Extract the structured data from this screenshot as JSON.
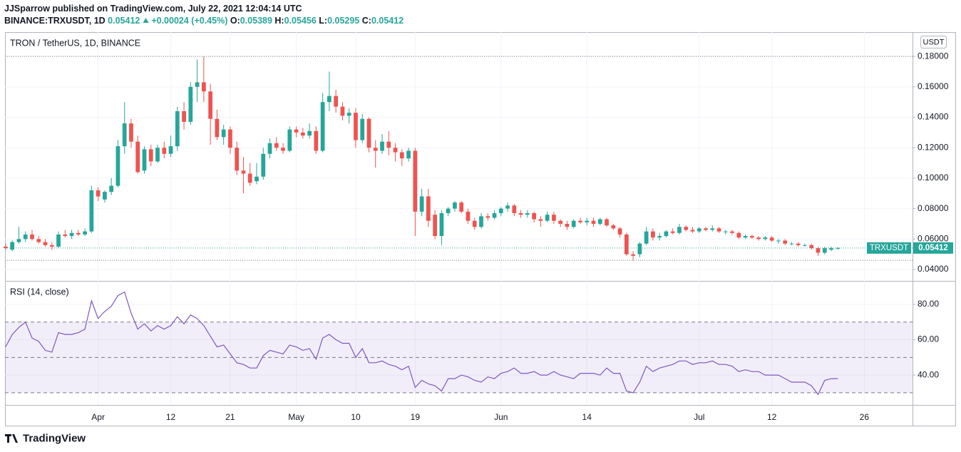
{
  "header": {
    "author_line": "JJSparrow published on TradingView.com, July 22, 2021 12:04:14 UTC",
    "symbol": "BINANCE:TRXUSDT, 1D",
    "last": "0.05412",
    "change": "+0.00024 (+0.45%)",
    "ohlc": [
      [
        "O:",
        "0.05389"
      ],
      [
        "H:",
        "0.05456"
      ],
      [
        "L:",
        "0.05295"
      ],
      [
        "C:",
        "0.05412"
      ]
    ]
  },
  "chart_data": [
    {
      "type": "candlestick",
      "title": "TRON / TetherUS, 1D, BINANCE",
      "currency": "USDT",
      "name": "TRXUSDT",
      "last_label": "0.05412",
      "up_color": "#26a69a",
      "down_color": "#ef5350",
      "grid": true,
      "xlim": [
        -0.1,
        137.3
      ],
      "xticks": [
        {
          "value": 14,
          "label": "Apr"
        },
        {
          "value": 25,
          "label": "12"
        },
        {
          "value": 34,
          "label": "21"
        },
        {
          "value": 44,
          "label": "May"
        },
        {
          "value": 53,
          "label": "10"
        },
        {
          "value": 62,
          "label": "19"
        },
        {
          "value": 75,
          "label": "Jun"
        },
        {
          "value": 88,
          "label": "14"
        },
        {
          "value": 105,
          "label": "Jul"
        },
        {
          "value": 116,
          "label": "12"
        },
        {
          "value": 130,
          "label": "26"
        }
      ],
      "ylim": [
        0.0325,
        0.196
      ],
      "yticks": [
        {
          "value": 0.18,
          "label": "0.18000"
        },
        {
          "value": 0.16,
          "label": "0.16000"
        },
        {
          "value": 0.14,
          "label": "0.14000"
        },
        {
          "value": 0.12,
          "label": "0.12000"
        },
        {
          "value": 0.1,
          "label": "0.10000"
        },
        {
          "value": 0.08,
          "label": "0.08000"
        },
        {
          "value": 0.06,
          "label": "0.06000"
        },
        {
          "value": 0.04,
          "label": "0.04000"
        }
      ],
      "candles": [
        [
          0.055,
          0.057,
          0.053,
          0.054
        ],
        [
          0.053,
          0.059,
          0.052,
          0.058
        ],
        [
          0.058,
          0.068,
          0.057,
          0.06
        ],
        [
          0.06,
          0.065,
          0.058,
          0.063
        ],
        [
          0.063,
          0.066,
          0.059,
          0.06
        ],
        [
          0.06,
          0.062,
          0.057,
          0.058
        ],
        [
          0.058,
          0.06,
          0.055,
          0.056
        ],
        [
          0.056,
          0.058,
          0.053,
          0.055
        ],
        [
          0.055,
          0.065,
          0.054,
          0.063
        ],
        [
          0.063,
          0.066,
          0.061,
          0.062
        ],
        [
          0.062,
          0.066,
          0.06,
          0.064
        ],
        [
          0.064,
          0.066,
          0.062,
          0.063
        ],
        [
          0.063,
          0.067,
          0.062,
          0.065
        ],
        [
          0.065,
          0.095,
          0.064,
          0.092
        ],
        [
          0.092,
          0.094,
          0.085,
          0.088
        ],
        [
          0.086,
          0.092,
          0.084,
          0.091
        ],
        [
          0.091,
          0.1,
          0.089,
          0.095
        ],
        [
          0.095,
          0.125,
          0.094,
          0.121
        ],
        [
          0.121,
          0.15,
          0.116,
          0.136
        ],
        [
          0.136,
          0.139,
          0.12,
          0.124
        ],
        [
          0.124,
          0.128,
          0.103,
          0.104
        ],
        [
          0.105,
          0.121,
          0.103,
          0.119
        ],
        [
          0.119,
          0.122,
          0.108,
          0.111
        ],
        [
          0.111,
          0.122,
          0.11,
          0.12
        ],
        [
          0.12,
          0.124,
          0.113,
          0.116
        ],
        [
          0.116,
          0.128,
          0.114,
          0.121
        ],
        [
          0.121,
          0.147,
          0.118,
          0.144
        ],
        [
          0.144,
          0.15,
          0.132,
          0.137
        ],
        [
          0.137,
          0.163,
          0.135,
          0.16
        ],
        [
          0.16,
          0.178,
          0.15,
          0.163
        ],
        [
          0.163,
          0.18,
          0.15,
          0.157
        ],
        [
          0.157,
          0.162,
          0.122,
          0.139
        ],
        [
          0.139,
          0.145,
          0.125,
          0.127
        ],
        [
          0.127,
          0.135,
          0.122,
          0.132
        ],
        [
          0.132,
          0.134,
          0.116,
          0.12
        ],
        [
          0.12,
          0.124,
          0.102,
          0.105
        ],
        [
          0.105,
          0.114,
          0.09,
          0.103
        ],
        [
          0.103,
          0.11,
          0.095,
          0.097
        ],
        [
          0.098,
          0.11,
          0.096,
          0.101
        ],
        [
          0.101,
          0.12,
          0.099,
          0.116
        ],
        [
          0.116,
          0.126,
          0.113,
          0.123
        ],
        [
          0.123,
          0.127,
          0.118,
          0.12
        ],
        [
          0.12,
          0.123,
          0.116,
          0.118
        ],
        [
          0.118,
          0.134,
          0.117,
          0.132
        ],
        [
          0.132,
          0.134,
          0.127,
          0.13
        ],
        [
          0.13,
          0.133,
          0.126,
          0.128
        ],
        [
          0.128,
          0.136,
          0.126,
          0.131
        ],
        [
          0.131,
          0.134,
          0.116,
          0.118
        ],
        [
          0.118,
          0.156,
          0.117,
          0.15
        ],
        [
          0.15,
          0.17,
          0.144,
          0.154
        ],
        [
          0.154,
          0.158,
          0.143,
          0.147
        ],
        [
          0.147,
          0.15,
          0.138,
          0.141
        ],
        [
          0.141,
          0.146,
          0.136,
          0.143
        ],
        [
          0.143,
          0.146,
          0.12,
          0.125
        ],
        [
          0.125,
          0.142,
          0.123,
          0.139
        ],
        [
          0.139,
          0.14,
          0.117,
          0.12
        ],
        [
          0.12,
          0.125,
          0.107,
          0.118
        ],
        [
          0.118,
          0.129,
          0.116,
          0.124
        ],
        [
          0.124,
          0.131,
          0.115,
          0.12
        ],
        [
          0.12,
          0.123,
          0.111,
          0.117
        ],
        [
          0.117,
          0.119,
          0.108,
          0.113
        ],
        [
          0.113,
          0.12,
          0.111,
          0.118
        ],
        [
          0.118,
          0.12,
          0.062,
          0.078
        ],
        [
          0.078,
          0.093,
          0.075,
          0.088
        ],
        [
          0.088,
          0.093,
          0.068,
          0.072
        ],
        [
          0.076,
          0.079,
          0.06,
          0.062
        ],
        [
          0.062,
          0.079,
          0.056,
          0.077
        ],
        [
          0.077,
          0.081,
          0.075,
          0.08
        ],
        [
          0.08,
          0.085,
          0.078,
          0.084
        ],
        [
          0.084,
          0.085,
          0.077,
          0.078
        ],
        [
          0.078,
          0.08,
          0.07,
          0.072
        ],
        [
          0.072,
          0.074,
          0.066,
          0.068
        ],
        [
          0.068,
          0.077,
          0.067,
          0.075
        ],
        [
          0.075,
          0.077,
          0.072,
          0.074
        ],
        [
          0.074,
          0.079,
          0.073,
          0.077
        ],
        [
          0.077,
          0.081,
          0.075,
          0.08
        ],
        [
          0.08,
          0.084,
          0.078,
          0.082
        ],
        [
          0.082,
          0.083,
          0.075,
          0.077
        ],
        [
          0.077,
          0.079,
          0.074,
          0.076
        ],
        [
          0.076,
          0.079,
          0.074,
          0.077
        ],
        [
          0.077,
          0.078,
          0.071,
          0.073
        ],
        [
          0.073,
          0.075,
          0.068,
          0.072
        ],
        [
          0.072,
          0.078,
          0.071,
          0.076
        ],
        [
          0.076,
          0.078,
          0.07,
          0.072
        ],
        [
          0.072,
          0.073,
          0.068,
          0.07
        ],
        [
          0.07,
          0.072,
          0.066,
          0.068
        ],
        [
          0.068,
          0.073,
          0.067,
          0.072
        ],
        [
          0.072,
          0.074,
          0.07,
          0.071
        ],
        [
          0.071,
          0.074,
          0.069,
          0.072
        ],
        [
          0.072,
          0.074,
          0.068,
          0.07
        ],
        [
          0.07,
          0.074,
          0.069,
          0.073
        ],
        [
          0.073,
          0.074,
          0.068,
          0.069
        ],
        [
          0.069,
          0.07,
          0.066,
          0.067
        ],
        [
          0.067,
          0.068,
          0.061,
          0.063
        ],
        [
          0.063,
          0.064,
          0.049,
          0.05
        ],
        [
          0.05,
          0.052,
          0.046,
          0.049
        ],
        [
          0.05,
          0.058,
          0.048,
          0.057
        ],
        [
          0.057,
          0.068,
          0.056,
          0.065
        ],
        [
          0.065,
          0.067,
          0.059,
          0.061
        ],
        [
          0.061,
          0.064,
          0.059,
          0.062
        ],
        [
          0.062,
          0.066,
          0.061,
          0.065
        ],
        [
          0.065,
          0.067,
          0.063,
          0.064
        ],
        [
          0.064,
          0.07,
          0.063,
          0.068
        ],
        [
          0.068,
          0.069,
          0.065,
          0.066
        ],
        [
          0.066,
          0.068,
          0.064,
          0.065
        ],
        [
          0.065,
          0.068,
          0.064,
          0.067
        ],
        [
          0.067,
          0.068,
          0.065,
          0.066
        ],
        [
          0.066,
          0.069,
          0.065,
          0.067
        ],
        [
          0.067,
          0.068,
          0.064,
          0.065
        ],
        [
          0.065,
          0.066,
          0.063,
          0.065
        ],
        [
          0.065,
          0.066,
          0.063,
          0.064
        ],
        [
          0.064,
          0.065,
          0.06,
          0.061
        ],
        [
          0.061,
          0.063,
          0.06,
          0.062
        ],
        [
          0.062,
          0.063,
          0.06,
          0.061
        ],
        [
          0.061,
          0.062,
          0.059,
          0.06
        ],
        [
          0.06,
          0.062,
          0.059,
          0.061
        ],
        [
          0.061,
          0.062,
          0.058,
          0.059
        ],
        [
          0.059,
          0.06,
          0.057,
          0.059
        ],
        [
          0.059,
          0.06,
          0.056,
          0.057
        ],
        [
          0.057,
          0.058,
          0.056,
          0.057
        ],
        [
          0.057,
          0.058,
          0.055,
          0.056
        ],
        [
          0.056,
          0.057,
          0.055,
          0.056
        ],
        [
          0.056,
          0.057,
          0.053,
          0.054
        ],
        [
          0.054,
          0.055,
          0.049,
          0.051
        ],
        [
          0.051,
          0.055,
          0.05,
          0.054
        ],
        [
          0.053,
          0.055,
          0.052,
          0.054
        ],
        [
          0.05389,
          0.05456,
          0.05295,
          0.05412
        ]
      ]
    },
    {
      "type": "line",
      "title": "RSI (14, close)",
      "color": "#7e57c2",
      "band": [
        30,
        70
      ],
      "levels": [
        70,
        50,
        30
      ],
      "xlim": [
        -0.1,
        137.3
      ],
      "ylim": [
        23.1,
        92.9
      ],
      "yticks": [
        {
          "value": 80,
          "label": "80.00"
        },
        {
          "value": 60,
          "label": "60.00"
        },
        {
          "value": 40,
          "label": "40.00"
        }
      ],
      "values": [
        56,
        63,
        67,
        70,
        61,
        59,
        54,
        53,
        64,
        63,
        63,
        64,
        66,
        82,
        72,
        76,
        79,
        85,
        87,
        75,
        66,
        69,
        65,
        68,
        66,
        68,
        73,
        69,
        74,
        72,
        68,
        62,
        56,
        57,
        52,
        47,
        46,
        44,
        44,
        51,
        54,
        53,
        52,
        57,
        56,
        54,
        55,
        49,
        61,
        63,
        60,
        58,
        58,
        50,
        55,
        47,
        47,
        48,
        46,
        45,
        43,
        45,
        33,
        37,
        35,
        34,
        31,
        38,
        38,
        40,
        39,
        37,
        36,
        39,
        38,
        41,
        42,
        44,
        41,
        41,
        42,
        40,
        40,
        42,
        40,
        39,
        38,
        41,
        41,
        41,
        40,
        44,
        41,
        41,
        31,
        30,
        36,
        45,
        42,
        44,
        45,
        46,
        48,
        48,
        46,
        47,
        47,
        48,
        46,
        46,
        45,
        42,
        43,
        42,
        42,
        40,
        40,
        40,
        38,
        36,
        36,
        36,
        34,
        29,
        37,
        38,
        38
      ]
    }
  ],
  "footer": {
    "brand": "TradingView"
  }
}
